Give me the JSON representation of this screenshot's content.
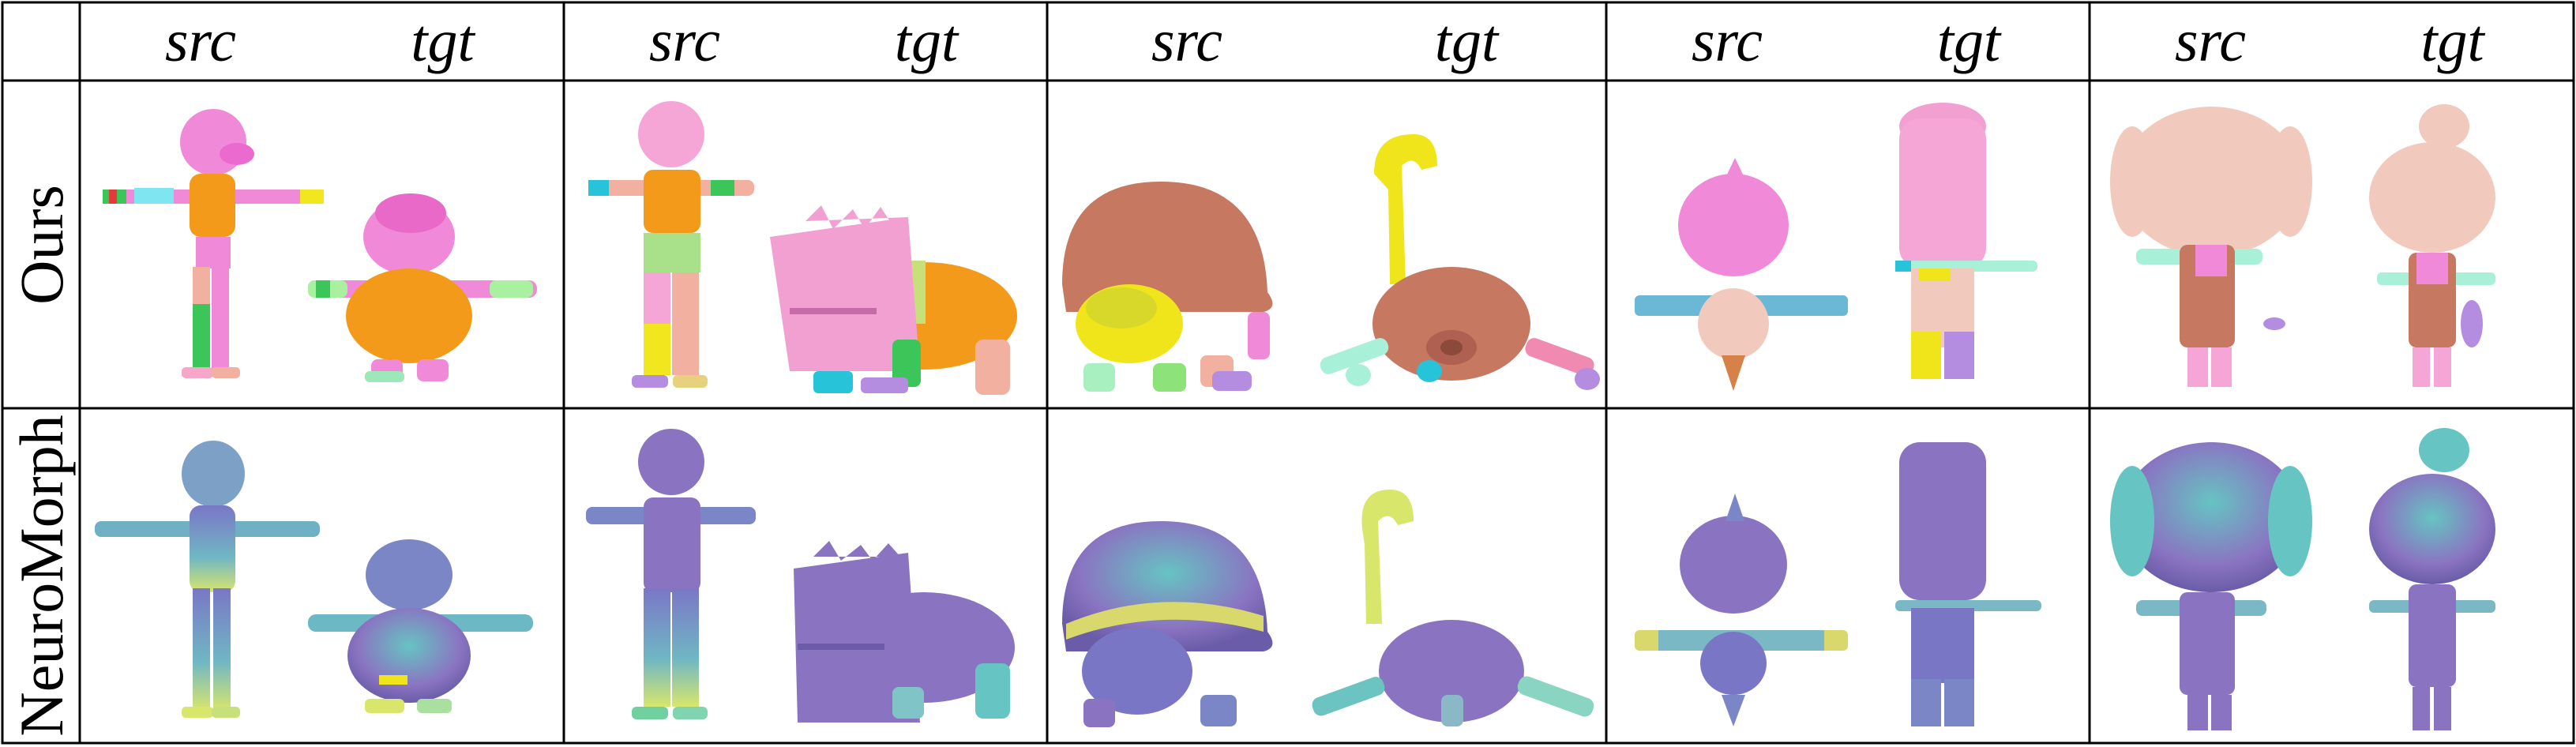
{
  "columns": [
    {
      "src_label": "src",
      "tgt_label": "tgt"
    },
    {
      "src_label": "src",
      "tgt_label": "tgt"
    },
    {
      "src_label": "src",
      "tgt_label": "tgt"
    },
    {
      "src_label": "src",
      "tgt_label": "tgt"
    },
    {
      "src_label": "src",
      "tgt_label": "tgt"
    }
  ],
  "rows": [
    {
      "label": "Ours"
    },
    {
      "label": "NeuroMorph"
    }
  ],
  "colors": {
    "ours_pink": "#f08ad8",
    "ours_orange": "#f39a1a",
    "ours_green": "#3cc65a",
    "ours_yellow": "#f2e61f",
    "ours_brown": "#c8785c",
    "ours_skin": "#f2c9bd",
    "nm_purple": "#8a74c2",
    "nm_teal": "#66c4c2",
    "nm_yellow": "#d9e66a"
  }
}
